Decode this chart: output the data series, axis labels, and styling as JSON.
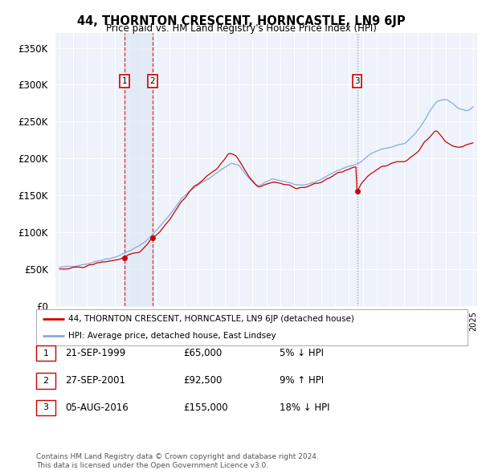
{
  "title": "44, THORNTON CRESCENT, HORNCASTLE, LN9 6JP",
  "subtitle": "Price paid vs. HM Land Registry's House Price Index (HPI)",
  "legend_line1": "44, THORNTON CRESCENT, HORNCASTLE, LN9 6JP (detached house)",
  "legend_line2": "HPI: Average price, detached house, East Lindsey",
  "footer1": "Contains HM Land Registry data © Crown copyright and database right 2024.",
  "footer2": "This data is licensed under the Open Government Licence v3.0.",
  "transactions": [
    {
      "num": 1,
      "date": "21-SEP-1999",
      "price": "£65,000",
      "hpi": "5% ↓ HPI",
      "year": 1999.72,
      "price_val": 65000
    },
    {
      "num": 2,
      "date": "27-SEP-2001",
      "price": "£92,500",
      "hpi": "9% ↑ HPI",
      "year": 2001.73,
      "price_val": 92500
    },
    {
      "num": 3,
      "date": "05-AUG-2016",
      "price": "£155,000",
      "hpi": "18% ↓ HPI",
      "year": 2016.59,
      "price_val": 155000
    }
  ],
  "property_color": "#cc0000",
  "hpi_color": "#88aadd",
  "shade_color": "#dde8f5",
  "background_color": "#eef2fa",
  "ylim": [
    0,
    370000
  ],
  "xlim_start": 1994.7,
  "xlim_end": 2025.3,
  "yticks": [
    0,
    50000,
    100000,
    150000,
    200000,
    250000,
    300000,
    350000
  ],
  "ylabel_fmt": [
    "£0",
    "£50K",
    "£100K",
    "£150K",
    "£200K",
    "£250K",
    "£300K",
    "£350K"
  ]
}
